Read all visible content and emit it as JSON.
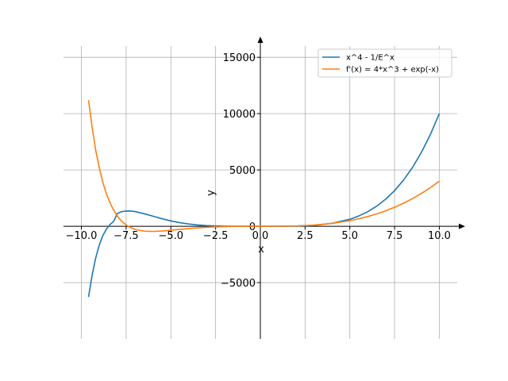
{
  "chart_data": {
    "type": "line",
    "title": "",
    "xlabel": "x",
    "ylabel": "y",
    "xlim": [
      -11.0,
      11.0
    ],
    "ylim": [
      -10000,
      16000
    ],
    "x_ticks": [
      -10.0,
      -7.5,
      -5.0,
      -2.5,
      0.0,
      2.5,
      5.0,
      7.5,
      10.0
    ],
    "x_tick_labels": [
      "−10.0",
      "−7.5",
      "−5.0",
      "−2.5",
      "0.0",
      "2.5",
      "5.0",
      "7.5",
      "10.0"
    ],
    "y_ticks": [
      -5000,
      0,
      5000,
      10000,
      15000
    ],
    "y_tick_labels": [
      "−5000",
      "0",
      "5000",
      "10000",
      "15000"
    ],
    "grid": true,
    "legend_position": "top-right",
    "series": [
      {
        "name": "x^4 - 1/E^x",
        "color": "#1f77b4",
        "x": [
          -9.6,
          -9.4,
          -9.2,
          -9.0,
          -8.8,
          -8.6,
          -8.4,
          -8.2,
          -8.0,
          -7.8,
          -7.6,
          -7.4,
          -7.2,
          -7.0,
          -6.5,
          -6.0,
          -5.5,
          -5.0,
          -4.5,
          -4.0,
          -3.5,
          -3.0,
          -2.5,
          -2.0,
          -1.0,
          0.0,
          1.0,
          2.0,
          3.0,
          4.0,
          5.0,
          5.5,
          6.0,
          6.5,
          7.0,
          7.5,
          8.0,
          8.5,
          9.0,
          9.5,
          10.0
        ],
        "y": [
          -6270,
          -4330,
          -2810,
          -1660,
          -820,
          -240,
          152,
          423,
          1115,
          1280,
          1337,
          1354,
          1348,
          1305,
          1120,
          893,
          671,
          477,
          320,
          202,
          117,
          61,
          27,
          8.6,
          -1.7,
          -1,
          0.6,
          15.9,
          81,
          256,
          625,
          915,
          1296,
          1785,
          2401,
          3164,
          4096,
          5220,
          6561,
          8145,
          10000
        ]
      },
      {
        "name": "f'(x) = 4*x^3 + exp(-x)",
        "color": "#ff7f0e",
        "x": [
          -9.6,
          -9.4,
          -9.2,
          -9.0,
          -8.8,
          -8.6,
          -8.4,
          -8.2,
          -8.0,
          -7.8,
          -7.6,
          -7.4,
          -7.2,
          -7.0,
          -6.5,
          -6.0,
          -5.5,
          -5.0,
          -4.5,
          -4.0,
          -3.5,
          -3.0,
          -2.5,
          -2.0,
          -1.0,
          0.0,
          1.0,
          2.0,
          3.0,
          4.0,
          5.0,
          5.5,
          6.0,
          6.5,
          7.0,
          7.5,
          8.0,
          8.5,
          9.0,
          9.5,
          10.0
        ],
        "y": [
          11200,
          8780,
          6750,
          5187,
          3880,
          2880,
          2080,
          1437,
          933,
          526,
          243,
          15,
          -144,
          -275,
          -433,
          -461,
          -421,
          -352,
          -274,
          -201,
          -138,
          -88,
          -50,
          -24.6,
          -1.3,
          1,
          4.4,
          32.1,
          108,
          256,
          500,
          665,
          864,
          1098,
          1372,
          1688,
          2048,
          2457,
          2916,
          3430,
          4000
        ]
      }
    ]
  }
}
